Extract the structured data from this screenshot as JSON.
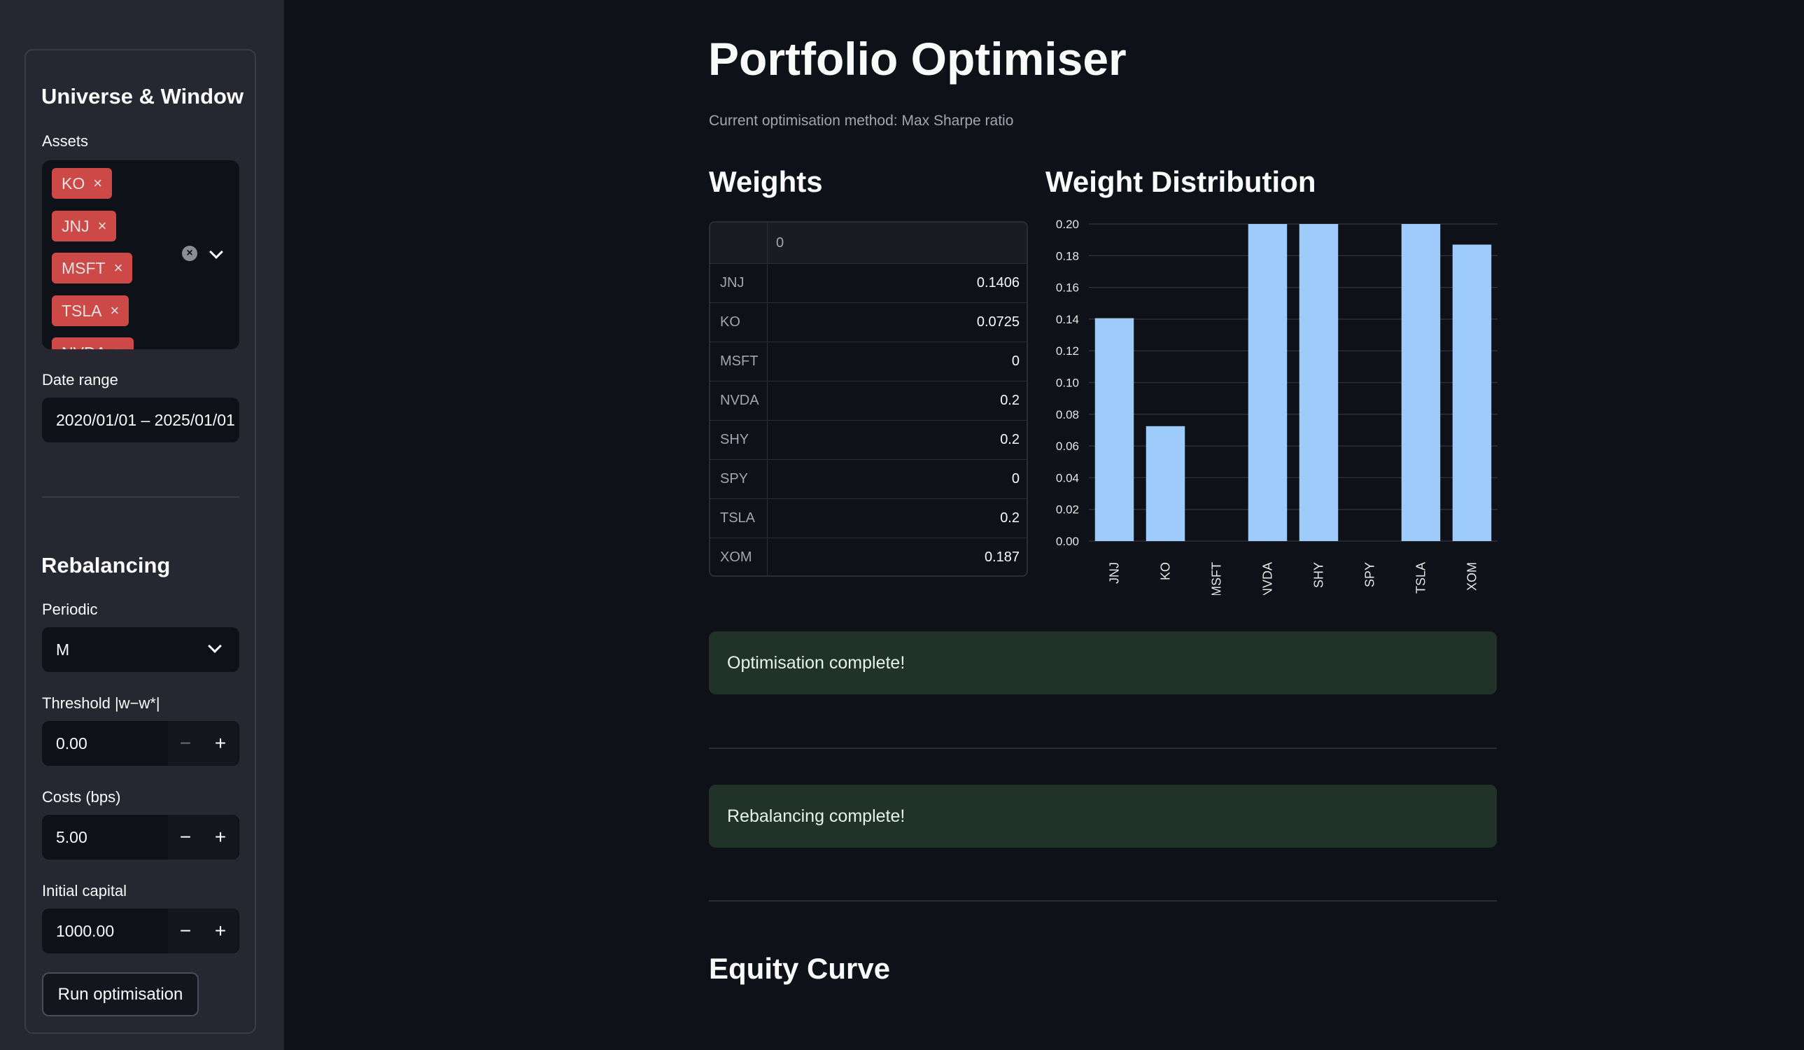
{
  "sidebar": {
    "section1_title": "Universe & Window",
    "assets_label": "Assets",
    "assets": [
      "KO",
      "JNJ",
      "MSFT",
      "TSLA",
      "NVDA"
    ],
    "chip_remove_icon": "×",
    "date_range_label": "Date range",
    "date_range_value": "2020/01/01 – 2025/01/01",
    "section2_title": "Rebalancing",
    "periodic_label": "Periodic",
    "periodic_value": "M",
    "threshold_label": "Threshold |w−w*|",
    "threshold_value": "0.00",
    "costs_label": "Costs (bps)",
    "costs_value": "5.00",
    "capital_label": "Initial capital",
    "capital_value": "1000.00",
    "minus_glyph": "−",
    "plus_glyph": "+",
    "run_button": "Run optimisation"
  },
  "main": {
    "title": "Portfolio Optimiser",
    "subtitle": "Current optimisation method: Max Sharpe ratio",
    "weights_title": "Weights",
    "distribution_title": "Weight Distribution",
    "table": {
      "column_header": "0",
      "rows": [
        {
          "asset": "JNJ",
          "weight": "0.1406"
        },
        {
          "asset": "KO",
          "weight": "0.0725"
        },
        {
          "asset": "MSFT",
          "weight": "0"
        },
        {
          "asset": "NVDA",
          "weight": "0.2"
        },
        {
          "asset": "SHY",
          "weight": "0.2"
        },
        {
          "asset": "SPY",
          "weight": "0"
        },
        {
          "asset": "TSLA",
          "weight": "0.2"
        },
        {
          "asset": "XOM",
          "weight": "0.187"
        }
      ]
    },
    "optimisation_alert": "Optimisation complete!",
    "rebalancing_alert": "Rebalancing complete!",
    "equity_title": "Equity Curve"
  },
  "chart_data": {
    "type": "bar",
    "categories": [
      "JNJ",
      "KO",
      "MSFT",
      "NVDA",
      "SHY",
      "SPY",
      "TSLA",
      "XOM"
    ],
    "values": [
      0.1406,
      0.0725,
      0,
      0.2,
      0.2,
      0,
      0.2,
      0.187
    ],
    "ylim": [
      0,
      0.2
    ],
    "yticks": [
      "0.00",
      "0.02",
      "0.04",
      "0.06",
      "0.08",
      "0.10",
      "0.12",
      "0.14",
      "0.16",
      "0.18",
      "0.20"
    ],
    "grid": true,
    "bar_color": "#9dcbfa"
  },
  "colors": {
    "accent_chip": "#e8514f",
    "success_bg": "#213329",
    "background": "#0e1117",
    "sidebar_bg": "#262730"
  }
}
